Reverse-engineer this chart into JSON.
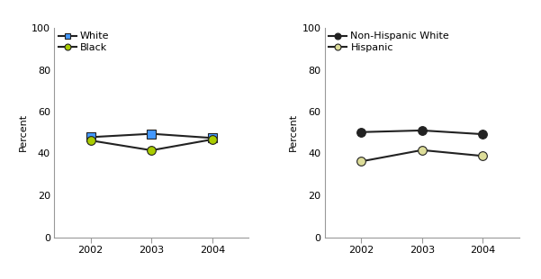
{
  "years": [
    2002,
    2003,
    2004
  ],
  "left": {
    "series": [
      {
        "label": "White",
        "values": [
          47.8,
          49.4,
          47.4
        ],
        "color": "#4499ff",
        "marker": "s",
        "markersize": 7,
        "line_color": "#222222"
      },
      {
        "label": "Black",
        "values": [
          46.2,
          41.5,
          46.7
        ],
        "color": "#aacc00",
        "marker": "o",
        "markersize": 7,
        "line_color": "#222222"
      }
    ],
    "ylabel": "Percent",
    "ylim": [
      0,
      100
    ],
    "yticks": [
      0,
      20,
      40,
      60,
      80,
      100
    ]
  },
  "right": {
    "series": [
      {
        "label": "Non-Hispanic White",
        "values": [
          50.2,
          51.0,
          49.2
        ],
        "color": "#222222",
        "marker": "o",
        "markersize": 7,
        "line_color": "#222222"
      },
      {
        "label": "Hispanic",
        "values": [
          36.2,
          41.6,
          38.8
        ],
        "color": "#dddd99",
        "marker": "o",
        "markersize": 7,
        "line_color": "#222222"
      }
    ],
    "ylabel": "Percent",
    "ylim": [
      0,
      100
    ],
    "yticks": [
      0,
      20,
      40,
      60,
      80,
      100
    ]
  },
  "background_color": "#ffffff",
  "tick_fontsize": 8,
  "label_fontsize": 8,
  "legend_fontsize": 8,
  "spine_color": "#999999"
}
